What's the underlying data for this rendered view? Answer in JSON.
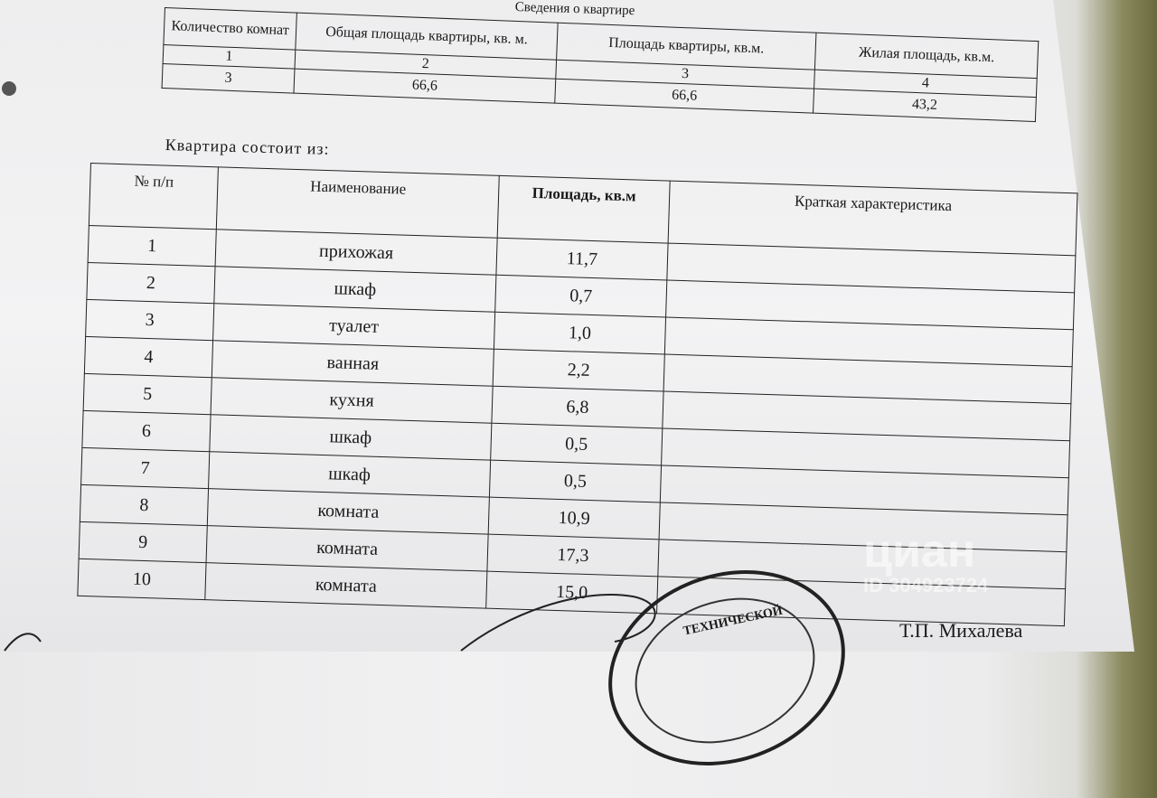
{
  "summary": {
    "title": "Сведения о квартире",
    "headers": [
      "Количество комнат",
      "Общая площадь квартиры, кв. м.",
      "Площадь квартиры, кв.м.",
      "Жилая площадь, кв.м."
    ],
    "column_numbers": [
      "1",
      "2",
      "3",
      "4"
    ],
    "values": [
      "3",
      "66,6",
      "66,6",
      "43,2"
    ]
  },
  "rooms": {
    "title": "Квартира состоит из:",
    "headers": [
      "№ п/п",
      "Наименование",
      "Площадь, кв.м",
      "Краткая характеристика"
    ],
    "rows": [
      {
        "n": "1",
        "name": "прихожая",
        "area": "11,7"
      },
      {
        "n": "2",
        "name": "шкаф",
        "area": "0,7"
      },
      {
        "n": "3",
        "name": "туалет",
        "area": "1,0"
      },
      {
        "n": "4",
        "name": "ванная",
        "area": "2,2"
      },
      {
        "n": "5",
        "name": "кухня",
        "area": "6,8"
      },
      {
        "n": "6",
        "name": "шкаф",
        "area": "0,5"
      },
      {
        "n": "7",
        "name": "шкаф",
        "area": "0,5"
      },
      {
        "n": "8",
        "name": "комната",
        "area": "10,9"
      },
      {
        "n": "9",
        "name": "комната",
        "area": "17,3"
      },
      {
        "n": "10",
        "name": "комната",
        "area": "15,0"
      }
    ]
  },
  "stamp": {
    "text": "ТЕХНИЧЕСКОЙ"
  },
  "signature": {
    "name": "Т.П. Михалева"
  },
  "watermark": {
    "logo": "циан",
    "id": "ID 304923724"
  }
}
